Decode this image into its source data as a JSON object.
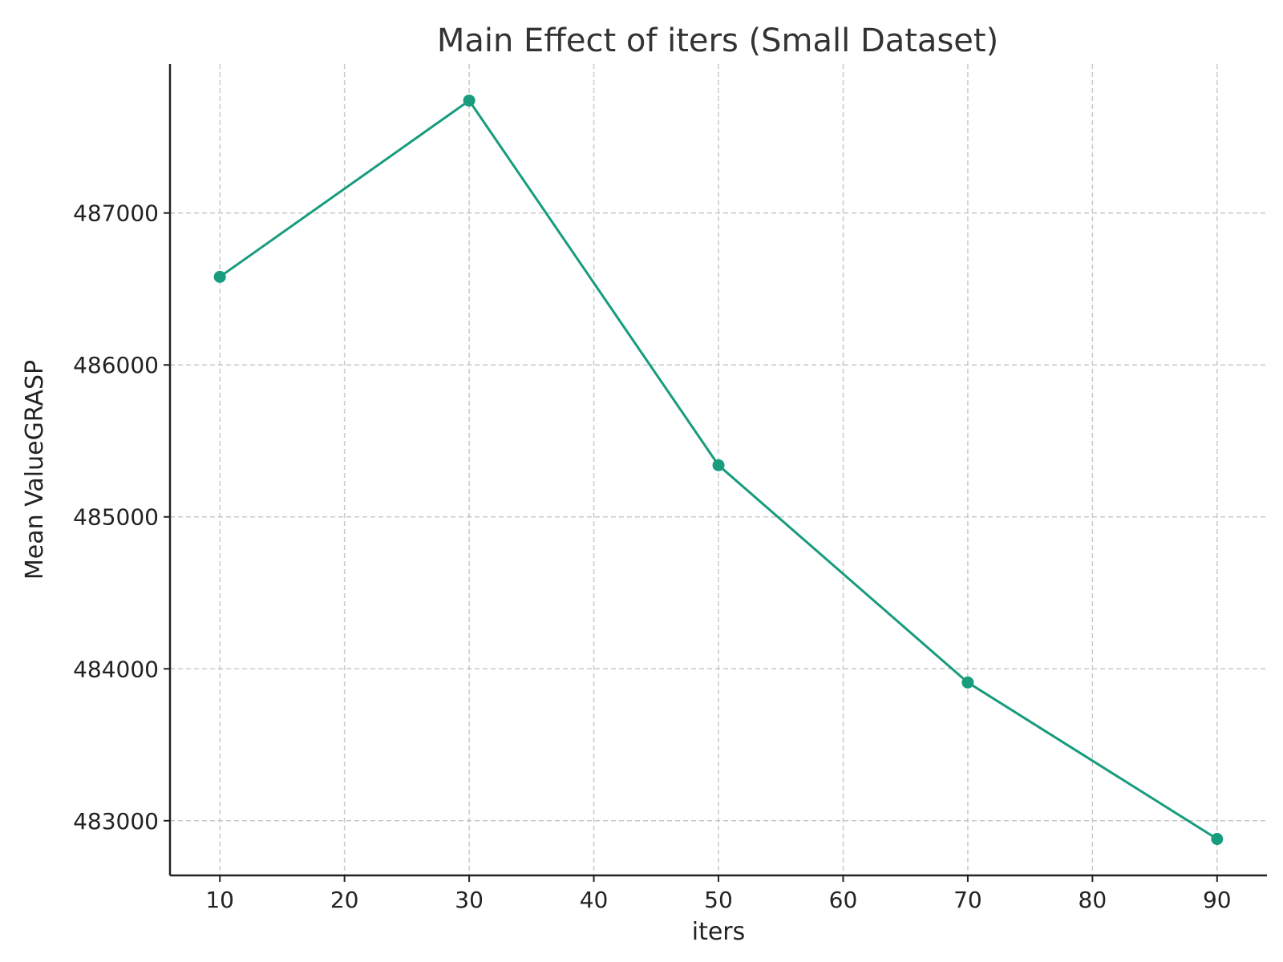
{
  "chart_data": {
    "type": "line",
    "title": "Main Effect of iters (Small Dataset)",
    "xlabel": "iters",
    "ylabel": "Mean ValueGRASP",
    "xlim": [
      6,
      94
    ],
    "ylim": [
      482640,
      487980
    ],
    "x_ticks": [
      10,
      20,
      30,
      40,
      50,
      60,
      70,
      80,
      90
    ],
    "y_ticks": [
      483000,
      484000,
      485000,
      486000,
      487000
    ],
    "grid": true,
    "series": [
      {
        "color": "#179c7d",
        "marker": "circle",
        "x": [
          10,
          30,
          50,
          70,
          90
        ],
        "y": [
          486580,
          487740,
          485340,
          483910,
          482880
        ]
      }
    ]
  }
}
